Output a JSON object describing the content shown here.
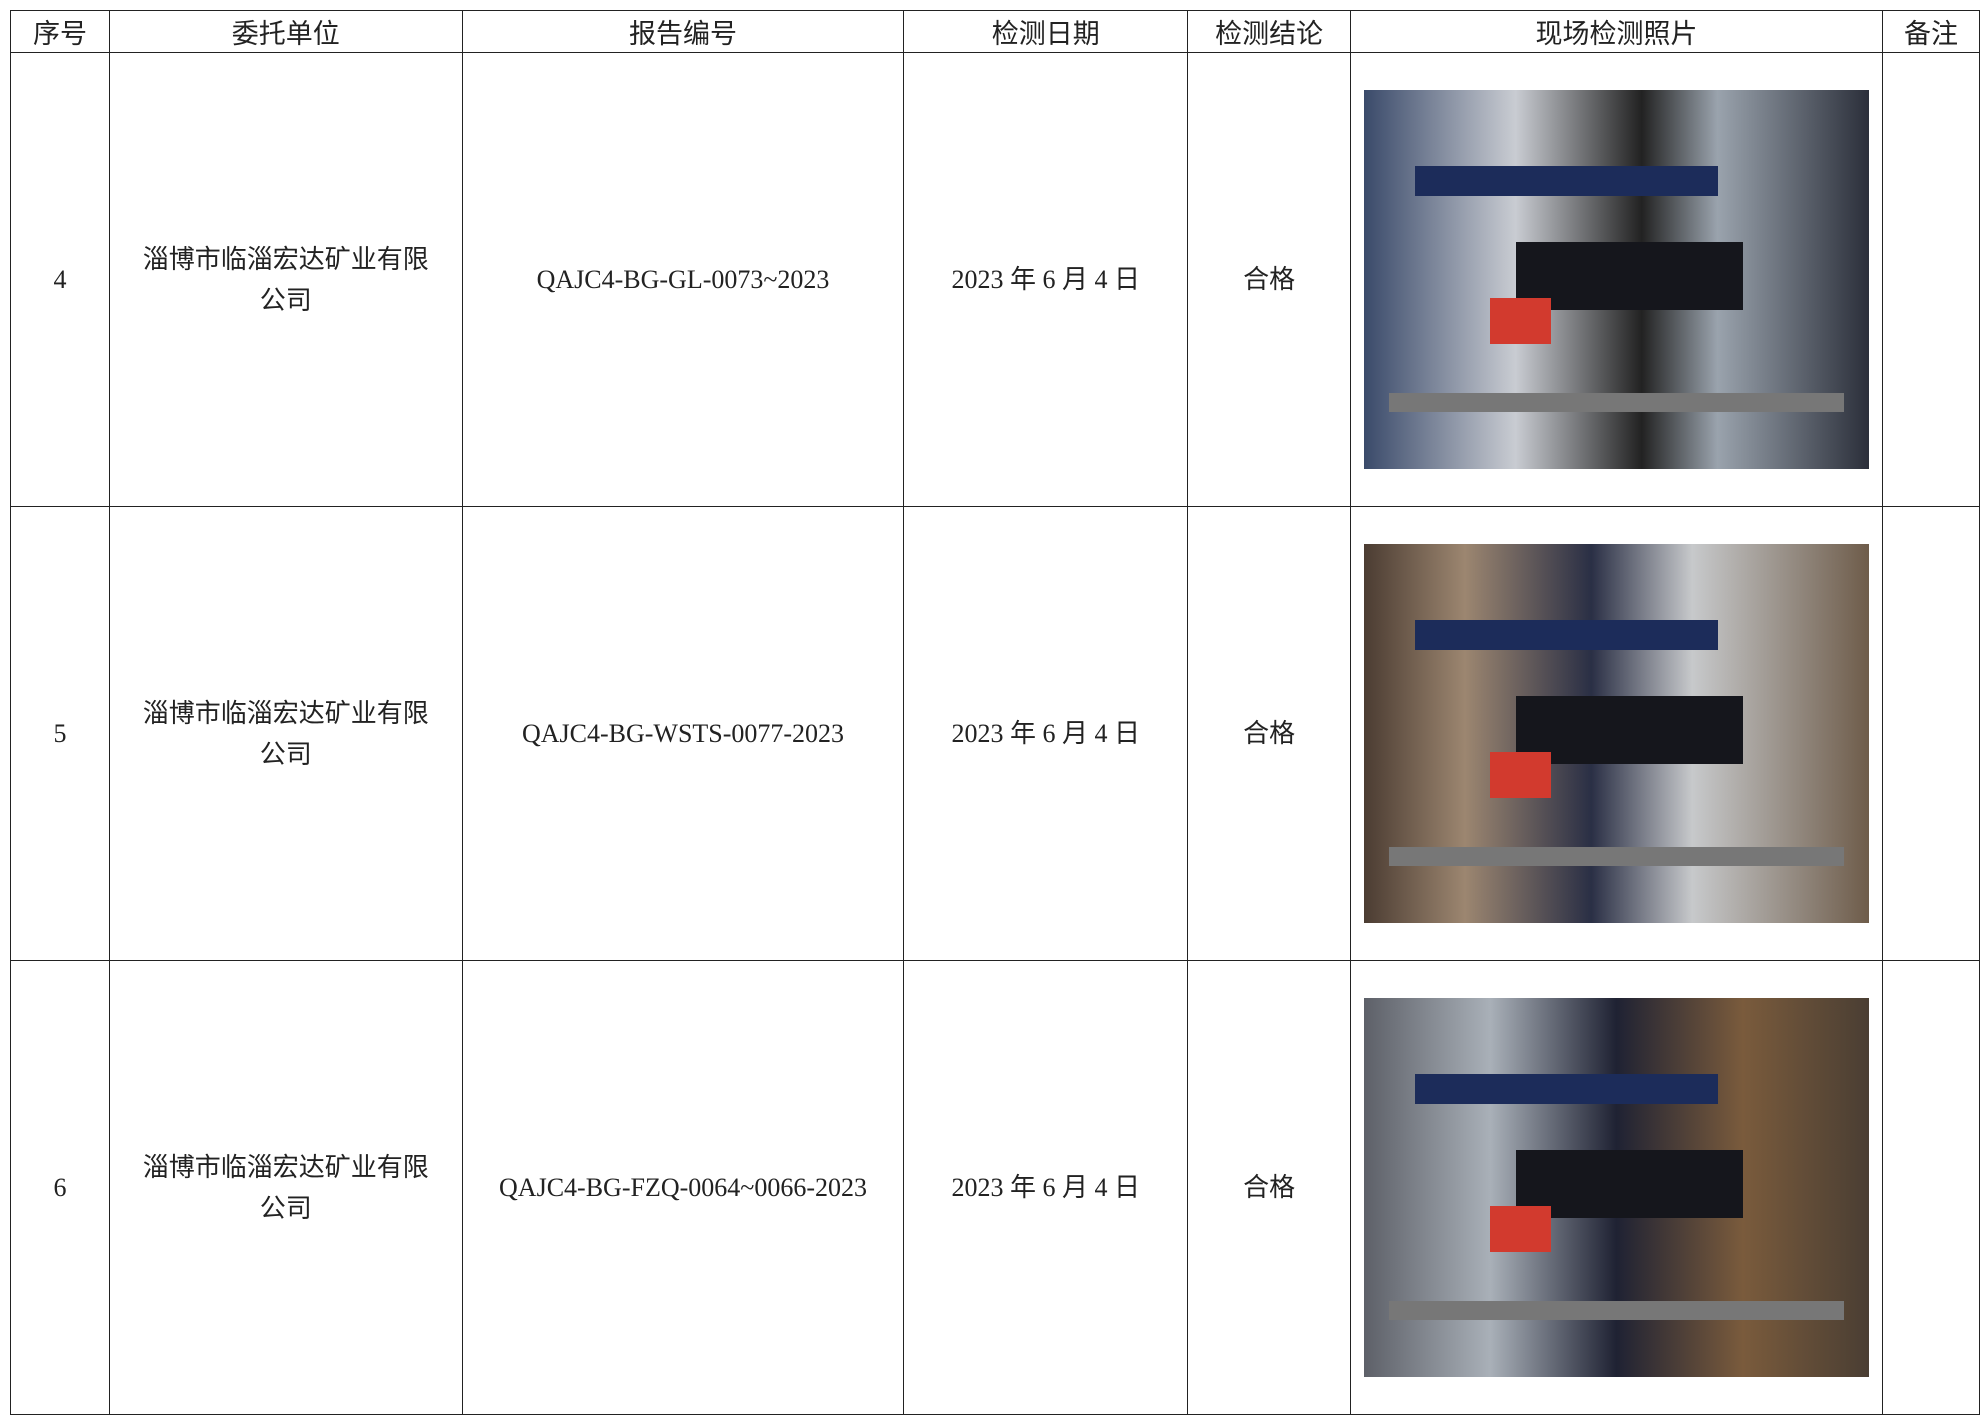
{
  "table": {
    "columns": [
      "序号",
      "委托单位",
      "报告编号",
      "检测日期",
      "检测结论",
      "现场检测照片",
      "备注"
    ],
    "rows": [
      {
        "index": 4,
        "unit": "淄博市临淄宏达矿业有限公司",
        "report_no": "QAJC4-BG-GL-0073~2023",
        "date": "2023 年 6 月 4 日",
        "conclusion": "合格"
      },
      {
        "index": 5,
        "unit": "淄博市临淄宏达矿业有限公司",
        "report_no": "QAJC4-BG-WSTS-0077-2023",
        "date": "2023 年 6 月 4 日",
        "conclusion": "合格"
      },
      {
        "index": 6,
        "unit": "淄博市临淄宏达矿业有限公司",
        "report_no": "QAJC4-BG-FZQ-0064~0066-2023",
        "date": "2023 年 6 月 4 日",
        "conclusion": "合格"
      }
    ]
  }
}
